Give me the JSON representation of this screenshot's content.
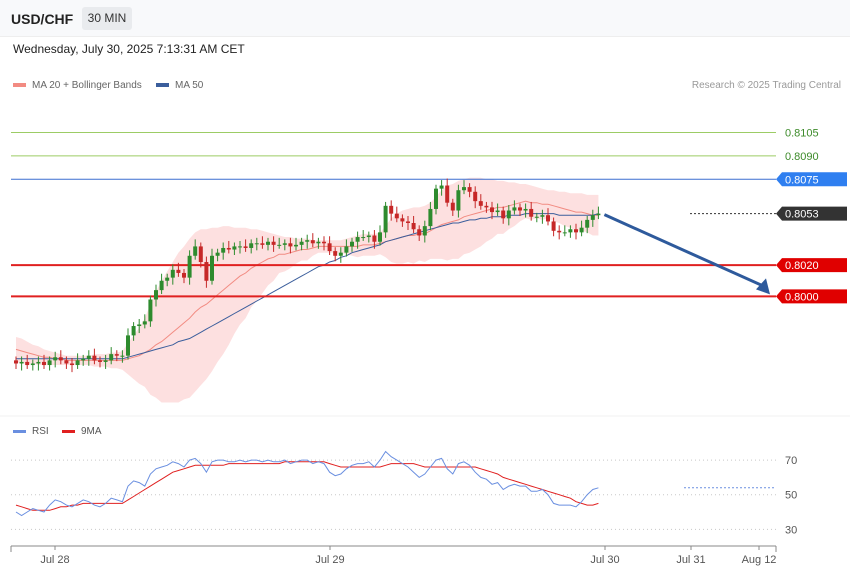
{
  "header": {
    "symbol": "USD/CHF",
    "timeframe": "30 MIN",
    "datetime": "Wednesday, July 30, 2025 7:13:31 AM CET"
  },
  "legend": {
    "ma20_label": "MA 20 + Bollinger Bands",
    "ma50_label": "MA 50",
    "credit": "Research © 2025 Trading Central"
  },
  "rsi_legend": {
    "rsi_label": "RSI",
    "ma_label": "9MA"
  },
  "colors": {
    "candle_up": "#2e8b2e",
    "candle_down": "#c62828",
    "ma20": "#f28b82",
    "bollinger_fill": "#fde0e0",
    "ma50": "#3b5e9c",
    "rsi": "#6a8fe0",
    "rsi_ma": "#e02020",
    "target_green": "#9ccc65",
    "resistance": "#3b6fd0",
    "support": "#e02020",
    "arrow": "#2e5a9c"
  },
  "chart_data": {
    "type": "candlestick",
    "price_range": [
      0.7924,
      0.8129
    ],
    "levels": [
      {
        "value": "0.8105",
        "kind": "target"
      },
      {
        "value": "0.8090",
        "kind": "target"
      },
      {
        "value": "0.8075",
        "kind": "resistance"
      },
      {
        "value": "0.8053",
        "kind": "current"
      },
      {
        "value": "0.8020",
        "kind": "support"
      },
      {
        "value": "0.8000",
        "kind": "support"
      }
    ],
    "x_labels": [
      "Jul 28",
      "Jul 29",
      "Jul 30",
      "Jul 31",
      "Aug 12"
    ],
    "close": [
      0.7957,
      0.7958,
      0.7956,
      0.7957,
      0.7958,
      0.7956,
      0.7959,
      0.7961,
      0.7959,
      0.7957,
      0.7956,
      0.7959,
      0.796,
      0.7962,
      0.7959,
      0.7958,
      0.7959,
      0.7963,
      0.7962,
      0.7962,
      0.7975,
      0.7981,
      0.7982,
      0.7984,
      0.7998,
      0.8004,
      0.801,
      0.8012,
      0.8017,
      0.8015,
      0.8012,
      0.8026,
      0.8032,
      0.8022,
      0.801,
      0.8026,
      0.8028,
      0.8031,
      0.803,
      0.8032,
      0.8032,
      0.8031,
      0.8034,
      0.8034,
      0.8033,
      0.8035,
      0.8033,
      0.8033,
      0.8034,
      0.8032,
      0.8033,
      0.8035,
      0.8036,
      0.8034,
      0.8035,
      0.8034,
      0.8029,
      0.8026,
      0.8028,
      0.8032,
      0.8035,
      0.8038,
      0.8038,
      0.8039,
      0.8035,
      0.8041,
      0.8058,
      0.8053,
      0.805,
      0.8048,
      0.8047,
      0.8043,
      0.8039,
      0.8045,
      0.8056,
      0.8069,
      0.8071,
      0.806,
      0.8055,
      0.8068,
      0.807,
      0.8067,
      0.8061,
      0.8058,
      0.8057,
      0.8054,
      0.8055,
      0.805,
      0.8055,
      0.8057,
      0.8055,
      0.8056,
      0.8051,
      0.8051,
      0.8052,
      0.8048,
      0.8042,
      0.8041,
      0.8041,
      0.8043,
      0.8041,
      0.8044,
      0.8049,
      0.8052,
      0.8053
    ],
    "ma20": [
      0.7966,
      0.7965,
      0.7964,
      0.7963,
      0.7962,
      0.7961,
      0.7961,
      0.796,
      0.796,
      0.7959,
      0.7959,
      0.7959,
      0.7959,
      0.7959,
      0.7959,
      0.7959,
      0.7959,
      0.7959,
      0.7959,
      0.7959,
      0.796,
      0.7961,
      0.7962,
      0.7964,
      0.7966,
      0.7969,
      0.7971,
      0.7974,
      0.7977,
      0.798,
      0.7983,
      0.7986,
      0.799,
      0.7993,
      0.7995,
      0.7998,
      0.8001,
      0.8004,
      0.8007,
      0.801,
      0.8013,
      0.8015,
      0.8018,
      0.802,
      0.8022,
      0.8024,
      0.8025,
      0.8027,
      0.8027,
      0.8028,
      0.8029,
      0.803,
      0.803,
      0.8031,
      0.8032,
      0.8032,
      0.8032,
      0.8032,
      0.8032,
      0.8032,
      0.8032,
      0.8032,
      0.8033,
      0.8033,
      0.8033,
      0.8034,
      0.8035,
      0.8036,
      0.8037,
      0.8038,
      0.8039,
      0.8039,
      0.804,
      0.804,
      0.8042,
      0.8044,
      0.8046,
      0.8047,
      0.8048,
      0.8049,
      0.8051,
      0.8052,
      0.8053,
      0.8054,
      0.8055,
      0.8056,
      0.8057,
      0.8057,
      0.8058,
      0.8059,
      0.806,
      0.8061,
      0.806,
      0.806,
      0.8059,
      0.8059,
      0.8058,
      0.8057,
      0.8056,
      0.8055,
      0.8054,
      0.8054,
      0.8053,
      0.8052,
      0.8052
    ],
    "bb_upper": [
      0.7974,
      0.7973,
      0.7971,
      0.7969,
      0.7968,
      0.7966,
      0.7965,
      0.7964,
      0.7963,
      0.7962,
      0.7962,
      0.7962,
      0.7962,
      0.7962,
      0.7963,
      0.7963,
      0.7963,
      0.7964,
      0.7964,
      0.7965,
      0.797,
      0.7975,
      0.798,
      0.7986,
      0.7995,
      0.8003,
      0.801,
      0.8016,
      0.8022,
      0.8028,
      0.8032,
      0.8037,
      0.8041,
      0.8043,
      0.8043,
      0.8044,
      0.8044,
      0.8045,
      0.8045,
      0.8044,
      0.8044,
      0.8044,
      0.8043,
      0.8043,
      0.8042,
      0.8041,
      0.804,
      0.8039,
      0.8038,
      0.8038,
      0.8037,
      0.8037,
      0.8037,
      0.8036,
      0.8036,
      0.8036,
      0.8036,
      0.8036,
      0.8036,
      0.8037,
      0.8038,
      0.8039,
      0.804,
      0.804,
      0.804,
      0.8041,
      0.8045,
      0.805,
      0.8053,
      0.8055,
      0.8056,
      0.8057,
      0.8057,
      0.8058,
      0.806,
      0.8064,
      0.8068,
      0.8071,
      0.8072,
      0.8074,
      0.8075,
      0.8076,
      0.8076,
      0.8076,
      0.8075,
      0.8075,
      0.8074,
      0.8074,
      0.8073,
      0.8073,
      0.8072,
      0.8072,
      0.8071,
      0.807,
      0.8069,
      0.8068,
      0.8068,
      0.8067,
      0.8067,
      0.8066,
      0.8066,
      0.8066,
      0.8065,
      0.8065,
      0.8065
    ],
    "bb_lower": [
      0.7958,
      0.7957,
      0.7957,
      0.7957,
      0.7956,
      0.7956,
      0.7956,
      0.7956,
      0.7956,
      0.7956,
      0.7956,
      0.7956,
      0.7956,
      0.7956,
      0.7955,
      0.7955,
      0.7955,
      0.7954,
      0.7954,
      0.7953,
      0.795,
      0.7947,
      0.7944,
      0.7942,
      0.7937,
      0.7935,
      0.7932,
      0.7932,
      0.7932,
      0.7932,
      0.7934,
      0.7935,
      0.7939,
      0.7943,
      0.7947,
      0.7952,
      0.7958,
      0.7963,
      0.7969,
      0.7976,
      0.7982,
      0.7986,
      0.7993,
      0.7997,
      0.8002,
      0.8007,
      0.801,
      0.8015,
      0.8016,
      0.8018,
      0.8021,
      0.8023,
      0.8023,
      0.8026,
      0.8028,
      0.8028,
      0.8028,
      0.8028,
      0.8028,
      0.8027,
      0.8026,
      0.8025,
      0.8026,
      0.8026,
      0.8026,
      0.8027,
      0.8025,
      0.8022,
      0.8021,
      0.8021,
      0.8022,
      0.8021,
      0.8023,
      0.8022,
      0.8024,
      0.8024,
      0.8024,
      0.8023,
      0.8024,
      0.8024,
      0.8027,
      0.8028,
      0.803,
      0.8032,
      0.8035,
      0.8037,
      0.804,
      0.804,
      0.8043,
      0.8045,
      0.8048,
      0.805,
      0.8049,
      0.805,
      0.8049,
      0.805,
      0.8048,
      0.8047,
      0.8045,
      0.8044,
      0.8042,
      0.8042,
      0.8041,
      0.8039,
      0.8039
    ],
    "ma50": [
      0.796,
      0.796,
      0.796,
      0.796,
      0.796,
      0.796,
      0.796,
      0.796,
      0.796,
      0.796,
      0.796,
      0.796,
      0.796,
      0.796,
      0.796,
      0.796,
      0.796,
      0.796,
      0.796,
      0.796,
      0.7961,
      0.7962,
      0.7963,
      0.7964,
      0.7965,
      0.7966,
      0.7967,
      0.7968,
      0.7969,
      0.7971,
      0.7972,
      0.7973,
      0.7975,
      0.7977,
      0.7979,
      0.7981,
      0.7983,
      0.7985,
      0.7987,
      0.7989,
      0.7991,
      0.7993,
      0.7995,
      0.7997,
      0.7999,
      0.8001,
      0.8003,
      0.8005,
      0.8007,
      0.8009,
      0.8011,
      0.8013,
      0.8015,
      0.8017,
      0.8019,
      0.802,
      0.8022,
      0.8023,
      0.8025,
      0.8026,
      0.8028,
      0.8029,
      0.803,
      0.8031,
      0.8032,
      0.8033,
      0.8035,
      0.8036,
      0.8037,
      0.8038,
      0.8039,
      0.804,
      0.8041,
      0.8042,
      0.8043,
      0.8044,
      0.8045,
      0.8046,
      0.8047,
      0.8047,
      0.8048,
      0.8049,
      0.8049,
      0.805,
      0.805,
      0.8051,
      0.8051,
      0.8051,
      0.8052,
      0.8052,
      0.8052,
      0.8053,
      0.8053,
      0.8053,
      0.8053,
      0.8053,
      0.8053,
      0.8052,
      0.8052,
      0.8052,
      0.8052,
      0.8052,
      0.8052,
      0.8052,
      0.8053
    ],
    "forecast_target": 0.8,
    "rsi": {
      "range": [
        25,
        77
      ],
      "levels": [
        "70",
        "50",
        "30"
      ],
      "rsi": [
        40,
        38,
        40,
        42,
        41,
        40,
        44,
        47,
        46,
        44,
        43,
        45,
        47,
        46,
        44,
        43,
        45,
        48,
        47,
        46,
        55,
        58,
        57,
        55,
        62,
        65,
        66,
        67,
        69,
        68,
        66,
        70,
        71,
        68,
        63,
        69,
        70,
        70,
        69,
        69,
        70,
        69,
        70,
        70,
        69,
        70,
        69,
        69,
        70,
        68,
        69,
        70,
        70,
        68,
        69,
        68,
        63,
        61,
        62,
        65,
        67,
        68,
        68,
        69,
        66,
        70,
        75,
        72,
        70,
        68,
        66,
        63,
        60,
        62,
        66,
        70,
        71,
        65,
        62,
        68,
        69,
        67,
        63,
        60,
        59,
        56,
        57,
        53,
        55,
        56,
        55,
        55,
        52,
        52,
        53,
        50,
        45,
        44,
        44,
        44,
        43,
        46,
        50,
        53,
        54
      ],
      "ma": [
        44,
        43,
        42,
        41,
        41,
        41,
        41,
        42,
        43,
        43,
        44,
        44,
        45,
        45,
        45,
        45,
        45,
        45,
        45,
        45,
        47,
        49,
        51,
        53,
        55,
        57,
        59,
        61,
        63,
        64,
        65,
        66,
        67,
        67,
        67,
        67,
        67,
        67,
        68,
        68,
        68,
        68,
        68,
        68,
        68,
        68,
        68,
        68,
        69,
        69,
        69,
        69,
        69,
        69,
        69,
        69,
        68,
        67,
        66,
        66,
        66,
        66,
        66,
        66,
        66,
        66,
        67,
        68,
        68,
        68,
        68,
        68,
        67,
        66,
        66,
        66,
        66,
        66,
        66,
        66,
        66,
        66,
        66,
        65,
        64,
        63,
        62,
        60,
        59,
        58,
        57,
        56,
        55,
        54,
        53,
        52,
        51,
        50,
        49,
        48,
        46,
        45,
        44,
        44,
        45
      ]
    }
  }
}
